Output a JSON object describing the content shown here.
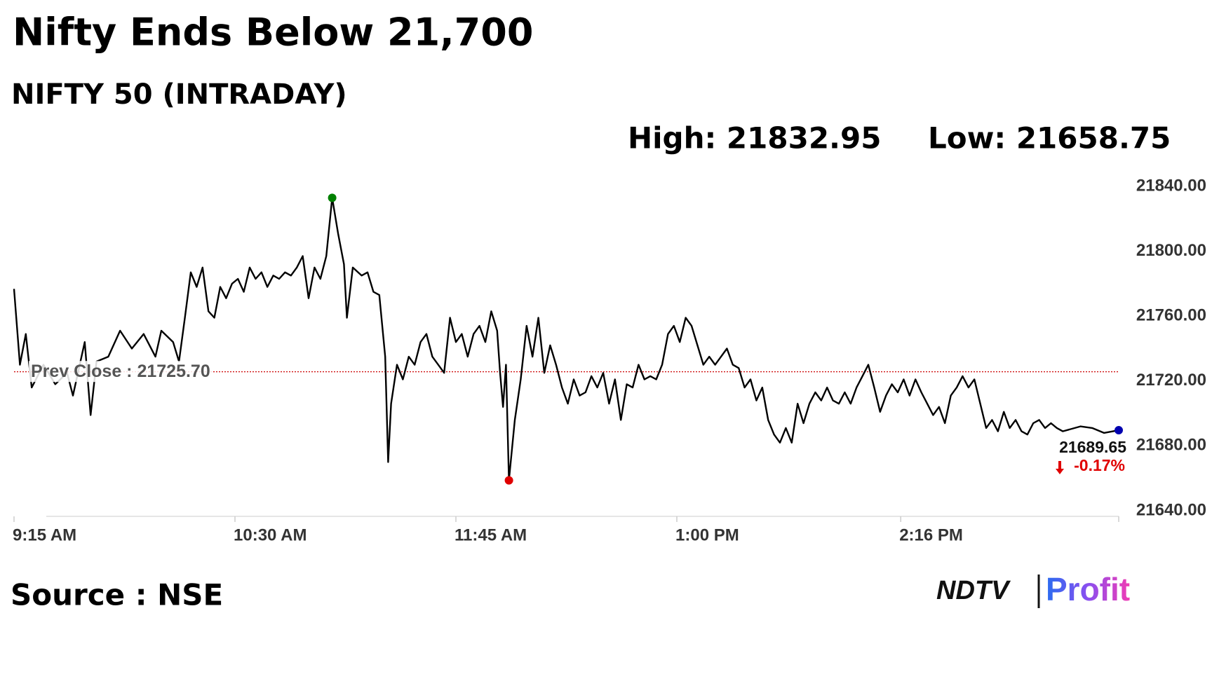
{
  "chart_data": {
    "type": "line",
    "title": "Nifty Ends Below 21,700",
    "subtitle": "NIFTY 50 (INTRADAY)",
    "high_label": "High: 21832.95",
    "low_label": "Low: 21658.75",
    "source": "Source : NSE",
    "logo": {
      "left": "NDTV",
      "right": "Profit"
    },
    "color": "#000000",
    "high_color": "#008000",
    "low_color": "#e00000",
    "last_color": "#0000b0",
    "prev_close": 21725.7,
    "prev_close_label": "Prev Close : 21725.70",
    "prev_close_color": "#cc0000",
    "last_value_label": "21689.65",
    "change_label": "-0.17%",
    "x": [
      0,
      2,
      4,
      6,
      10,
      14,
      18,
      20,
      24,
      26,
      28,
      32,
      36,
      40,
      44,
      48,
      50,
      54,
      56,
      58,
      60,
      62,
      64,
      66,
      68,
      70,
      72,
      74,
      76,
      78,
      80,
      82,
      84,
      86,
      88,
      90,
      92,
      94,
      96,
      98,
      100,
      102,
      104,
      106,
      108,
      110,
      112,
      113,
      115,
      118,
      120,
      122,
      124,
      126,
      127,
      128,
      130,
      132,
      134,
      136,
      138,
      140,
      142,
      144,
      146,
      148,
      150,
      152,
      154,
      156,
      158,
      160,
      162,
      164,
      165,
      166,
      167,
      168,
      170,
      172,
      174,
      176,
      178,
      180,
      182,
      184,
      186,
      188,
      190,
      192,
      194,
      196,
      198,
      200,
      202,
      204,
      206,
      208,
      210,
      212,
      214,
      216,
      218,
      220,
      222,
      224,
      226,
      228,
      230,
      232,
      234,
      236,
      238,
      240,
      242,
      244,
      246,
      248,
      250,
      252,
      254,
      256,
      258,
      260,
      262,
      264,
      266,
      268,
      270,
      272,
      274,
      276,
      278,
      280,
      282,
      284,
      286,
      288,
      290,
      292,
      294,
      296,
      298,
      300,
      302,
      304,
      306,
      308,
      310,
      312,
      314,
      316,
      318,
      320,
      322,
      324,
      326,
      328,
      330,
      332,
      334,
      336,
      338,
      340,
      342,
      344,
      346,
      348,
      350,
      352,
      354,
      356,
      358,
      362,
      366,
      370,
      375
    ],
    "values": [
      21776.8,
      21730,
      21749,
      21716,
      21730,
      21718,
      21725,
      21711,
      21744,
      21699,
      21732,
      21735,
      21751,
      21740,
      21749,
      21735,
      21751,
      21744,
      21732,
      21759,
      21787,
      21778,
      21790,
      21763,
      21759,
      21778,
      21771,
      21780,
      21783,
      21775,
      21790,
      21783,
      21787,
      21778,
      21785,
      21783,
      21787,
      21785,
      21790,
      21797,
      21771,
      21790,
      21783,
      21797,
      21832.95,
      21811,
      21792,
      21759,
      21790,
      21785,
      21787,
      21775,
      21773,
      21735,
      21670,
      21706,
      21730,
      21721,
      21735,
      21730,
      21744,
      21749,
      21735,
      21730,
      21725,
      21759,
      21744,
      21749,
      21735,
      21749,
      21754,
      21744,
      21763,
      21751,
      21725,
      21704,
      21730,
      21658.75,
      21696,
      21721,
      21754,
      21735,
      21759,
      21725,
      21742,
      21730,
      21716,
      21706,
      21721,
      21711,
      21713,
      21723,
      21716,
      21725,
      21706,
      21721,
      21696,
      21718,
      21716,
      21730,
      21721,
      21723,
      21721,
      21730,
      21749,
      21754,
      21744,
      21759,
      21754,
      21742,
      21730,
      21735,
      21730,
      21735,
      21740,
      21730,
      21728,
      21716,
      21721,
      21708,
      21716,
      21696,
      21687,
      21682,
      21691,
      21682,
      21706,
      21694,
      21706,
      21713,
      21708,
      21716,
      21708,
      21706,
      21713,
      21706,
      21716,
      21723,
      21730,
      21716,
      21701,
      21711,
      21718,
      21713,
      21721,
      21711,
      21721,
      21713,
      21706,
      21699,
      21704,
      21694,
      21711,
      21716,
      21723,
      21716,
      21721,
      21706,
      21691,
      21696,
      21689,
      21701,
      21691,
      21696,
      21689,
      21687,
      21694,
      21696,
      21691,
      21694,
      21691,
      21689,
      21690,
      21692,
      21691,
      21688,
      21689.65
    ],
    "xlim": [
      0,
      375
    ],
    "ylim": [
      21640,
      21840
    ],
    "xticks": [
      {
        "value": 0,
        "label": "9:15 AM"
      },
      {
        "value": 75,
        "label": "10:30 AM"
      },
      {
        "value": 150,
        "label": "11:45 AM"
      },
      {
        "value": 225,
        "label": "1:00 PM"
      },
      {
        "value": 301,
        "label": "2:16 PM"
      }
    ],
    "yticks": [
      {
        "value": 21640,
        "label": "21640.00"
      },
      {
        "value": 21680,
        "label": "21680.00"
      },
      {
        "value": 21720,
        "label": "21720.00"
      },
      {
        "value": 21760,
        "label": "21760.00"
      },
      {
        "value": 21800,
        "label": "21800.00"
      },
      {
        "value": 21840,
        "label": "21840.00"
      }
    ]
  }
}
